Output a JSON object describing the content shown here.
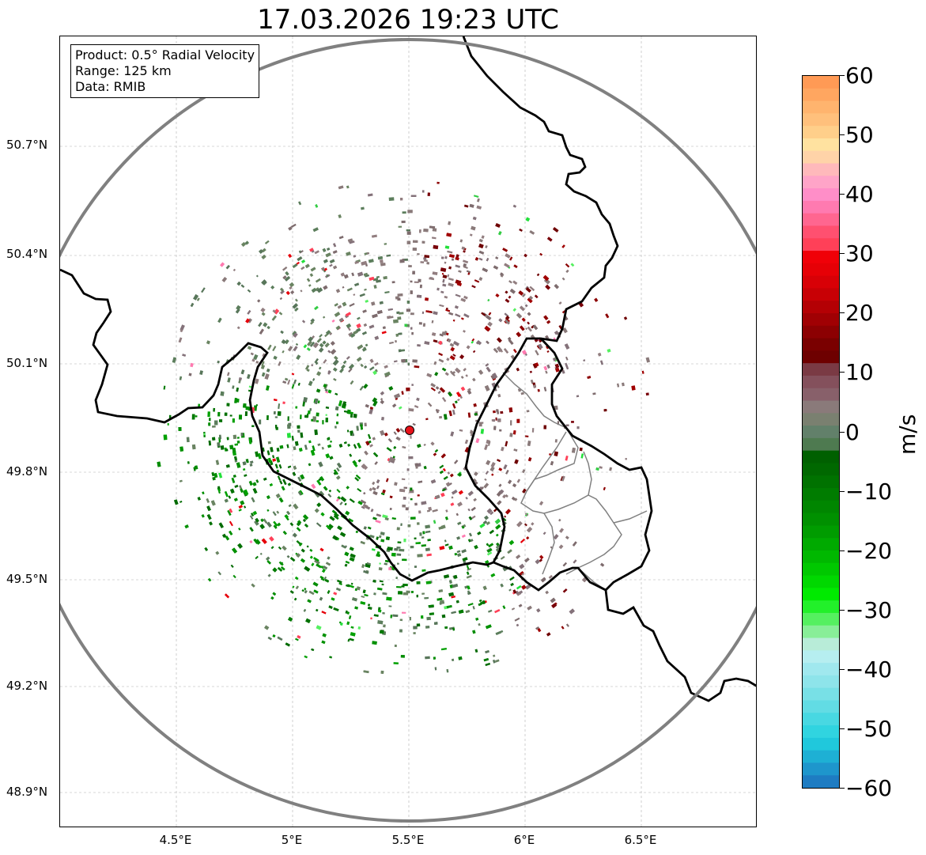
{
  "title": "17.03.2026 19:23 UTC",
  "info_box": {
    "product": "Product: 0.5° Radial Velocity",
    "range": "Range: 125 km",
    "data": "Data: RMIB"
  },
  "map": {
    "lon_range": [
      4.0,
      7.0
    ],
    "lat_range": [
      48.8,
      50.99
    ],
    "radar_site": {
      "lon": 5.505,
      "lat": 49.915
    },
    "range_km": 125,
    "x_ticks": [
      "4.5°E",
      "5°E",
      "5.5°E",
      "6°E",
      "6.5°E"
    ],
    "y_ticks": [
      "50.7°N",
      "50.4°N",
      "50.1°N",
      "49.8°N",
      "49.5°N",
      "49.2°N",
      "48.9°N"
    ],
    "range_ring_color": "#808080",
    "border_color": "#000000",
    "subregion_border_color": "#808080",
    "site_marker_color": "#e8121a",
    "gridlines": true
  },
  "colorbar": {
    "label": "m/s",
    "ticks": [
      "60",
      "50",
      "40",
      "30",
      "20",
      "10",
      "0",
      "−10",
      "−20",
      "−30",
      "−40",
      "−50",
      "−60"
    ],
    "range": [
      -60,
      60
    ]
  }
}
